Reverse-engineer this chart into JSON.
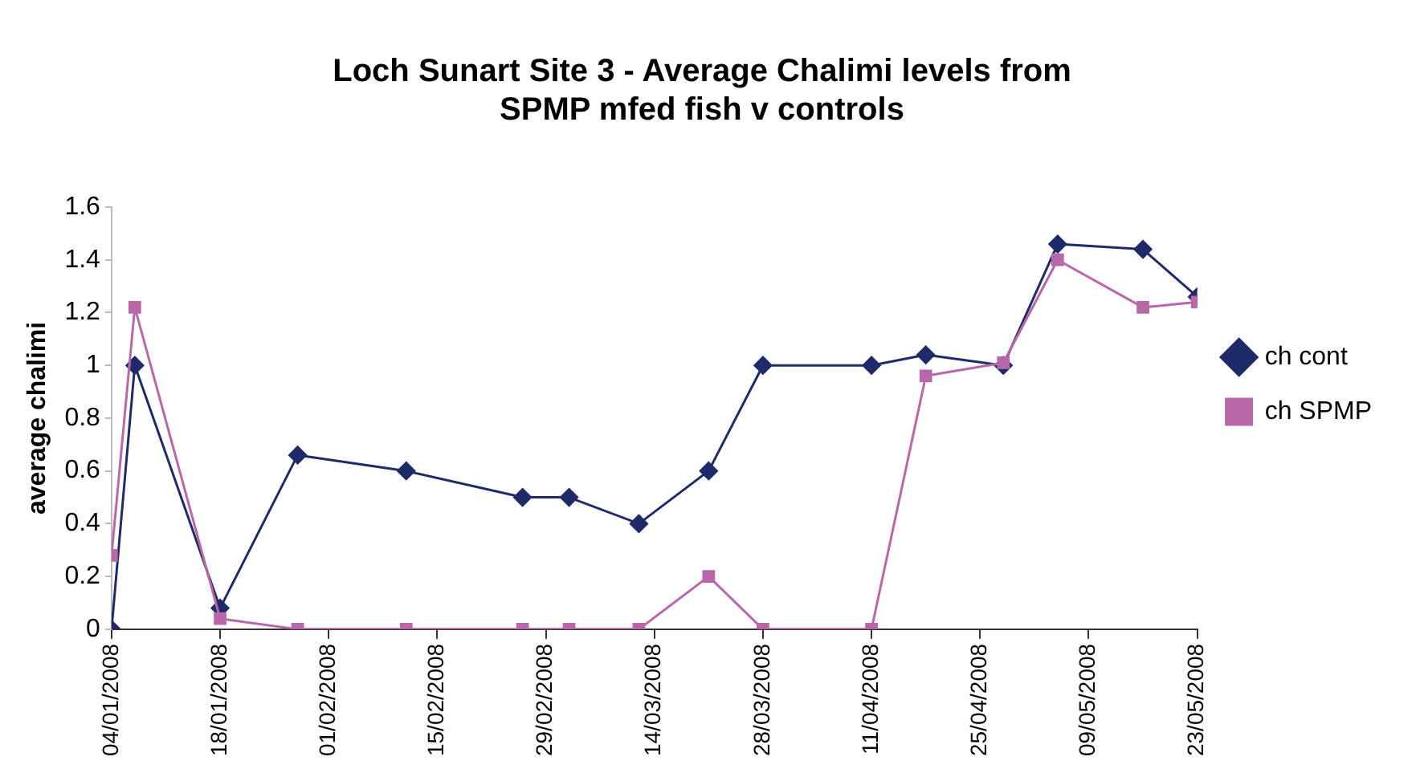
{
  "chart_data": {
    "type": "line",
    "title": [
      "Loch Sunart Site 3 - Average Chalimi levels from",
      "SPMP mfed fish v controls"
    ],
    "ylabel": "average chalimi",
    "x": [
      "2008-01-04",
      "2008-01-07",
      "2008-01-18",
      "2008-01-28",
      "2008-02-11",
      "2008-02-26",
      "2008-03-03",
      "2008-03-12",
      "2008-03-21",
      "2008-03-28",
      "2008-04-11",
      "2008-04-18",
      "2008-04-28",
      "2008-05-05",
      "2008-05-16",
      "2008-05-23"
    ],
    "series": [
      {
        "name": "ch cont",
        "color": "#1f2a6b",
        "marker": "diamond",
        "values": [
          0,
          1.0,
          0.08,
          0.66,
          0.6,
          0.5,
          0.5,
          0.4,
          0.6,
          1.0,
          1.0,
          1.04,
          1.0,
          1.46,
          1.44,
          1.26
        ]
      },
      {
        "name": "ch SPMP",
        "color": "#b868a8",
        "marker": "square",
        "values": [
          0.28,
          1.22,
          0.04,
          0,
          0,
          0,
          0,
          0,
          0.2,
          0,
          0,
          0.96,
          1.01,
          1.4,
          1.22,
          1.24
        ]
      }
    ],
    "xlim": [
      "2008-01-04",
      "2008-05-23"
    ],
    "xticks": [
      {
        "value": "2008-01-04",
        "label": "04/01/2008"
      },
      {
        "value": "2008-01-18",
        "label": "18/01/2008"
      },
      {
        "value": "2008-02-01",
        "label": "01/02/2008"
      },
      {
        "value": "2008-02-15",
        "label": "15/02/2008"
      },
      {
        "value": "2008-02-29",
        "label": "29/02/2008"
      },
      {
        "value": "2008-03-14",
        "label": "14/03/2008"
      },
      {
        "value": "2008-03-28",
        "label": "28/03/2008"
      },
      {
        "value": "2008-04-11",
        "label": "11/04/2008"
      },
      {
        "value": "2008-04-25",
        "label": "25/04/2008"
      },
      {
        "value": "2008-05-09",
        "label": "09/05/2008"
      },
      {
        "value": "2008-05-23",
        "label": "23/05/2008"
      }
    ],
    "ylim": [
      0,
      1.6
    ],
    "yticks": [
      0,
      0.2,
      0.4,
      0.6,
      0.8,
      1,
      1.2,
      1.4,
      1.6
    ],
    "grid": false,
    "legend": "right"
  }
}
